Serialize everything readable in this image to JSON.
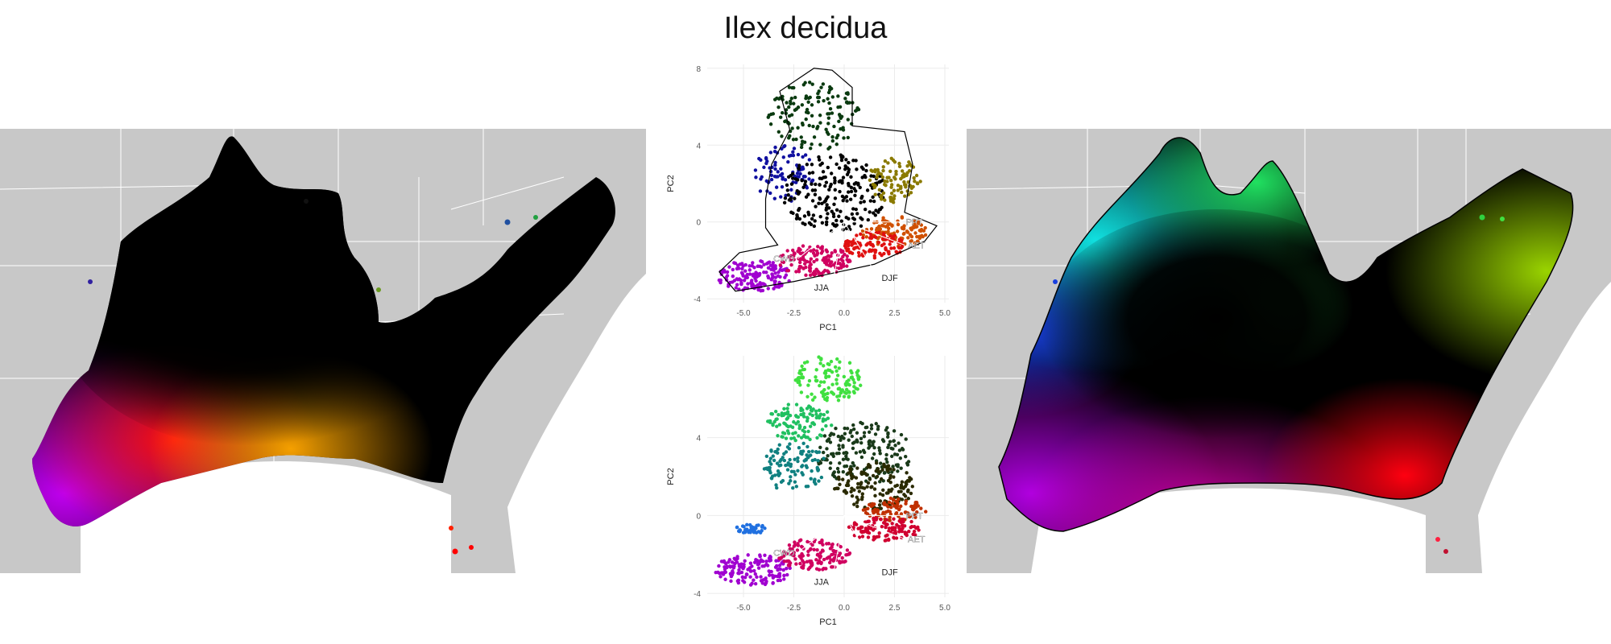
{
  "title": "Ilex decidua",
  "colors": {
    "land": "#c8c8c8",
    "borders": "#ffffff",
    "purple": "#b000e0",
    "red": "#e80010",
    "orange": "#f0a000",
    "yellow_green": "#9ad400",
    "green": "#22e040",
    "cyan": "#10e0e0",
    "blue": "#1838e0",
    "black": "#000000"
  },
  "maps": {
    "left": {
      "name": "observed-climate-map"
    },
    "right": {
      "name": "projected-range-map"
    }
  },
  "biplots": [
    {
      "name": "pca-biplot-top",
      "xlabel": "PC1",
      "ylabel": "PC2",
      "xticks": [
        "-5.0",
        "-2.5",
        "0.0",
        "2.5",
        "5.0"
      ],
      "xtick_values": [
        -5.0,
        -2.5,
        0.0,
        2.5,
        5.0
      ],
      "yticks": [
        "-4",
        "0",
        "4",
        "8"
      ],
      "ytick_values": [
        -4,
        0,
        4,
        8
      ],
      "xlim": [
        -6.8,
        5.2
      ],
      "ylim": [
        -4.2,
        8.2
      ],
      "vectors": [
        {
          "label": "PPT",
          "x": 2.9,
          "y": 0.0
        },
        {
          "label": "AET",
          "x": 3.0,
          "y": -1.2
        },
        {
          "label": "DJF",
          "x": 1.7,
          "y": -2.9
        },
        {
          "label": "JJA",
          "x": -0.6,
          "y": -3.4
        },
        {
          "label": "CWD",
          "x": -2.3,
          "y": -1.9
        }
      ]
    },
    {
      "name": "pca-biplot-bottom",
      "xlabel": "PC1",
      "ylabel": "PC2",
      "xticks": [
        "-5.0",
        "-2.5",
        "0.0",
        "2.5",
        "5.0"
      ],
      "xtick_values": [
        -5.0,
        -2.5,
        0.0,
        2.5,
        5.0
      ],
      "yticks": [
        "-4",
        "0",
        "4"
      ],
      "ytick_values": [
        -4,
        0,
        4
      ],
      "xlim": [
        -6.8,
        5.2
      ],
      "ylim": [
        -4.2,
        8.2
      ],
      "vectors": [
        {
          "label": "PPT",
          "x": 2.9,
          "y": 0.0
        },
        {
          "label": "AET",
          "x": 3.0,
          "y": -1.2
        },
        {
          "label": "DJF",
          "x": 1.7,
          "y": -2.9
        },
        {
          "label": "JJA",
          "x": -0.6,
          "y": -3.4
        },
        {
          "label": "CWD",
          "x": -2.3,
          "y": -1.9
        }
      ]
    }
  ]
}
